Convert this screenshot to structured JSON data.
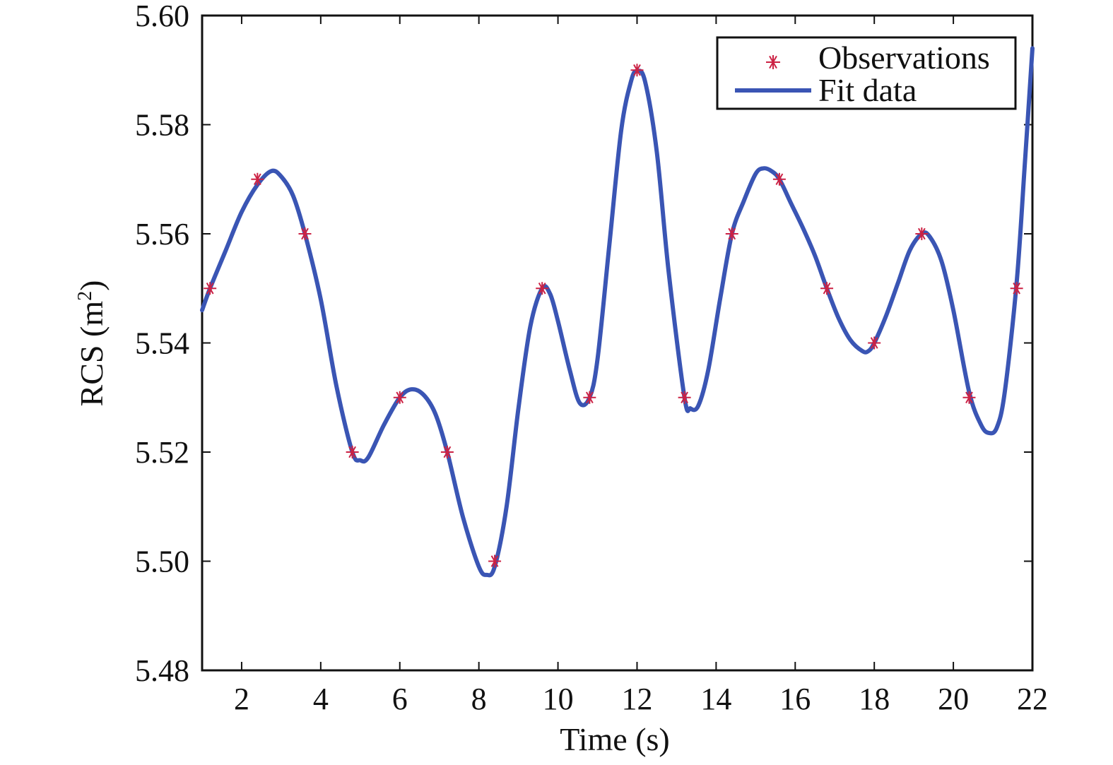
{
  "chart_data": {
    "type": "line",
    "xlabel": "Time (s)",
    "ylabel_main": "RCS (m",
    "ylabel_sup": "2",
    "ylabel_close": ")",
    "xlim": [
      1,
      22
    ],
    "ylim": [
      5.48,
      5.6
    ],
    "xticks": [
      2,
      4,
      6,
      8,
      10,
      12,
      14,
      16,
      18,
      20,
      22
    ],
    "yticks": [
      5.48,
      5.5,
      5.52,
      5.54,
      5.56,
      5.58,
      5.6
    ],
    "ytick_labels": [
      "5.48",
      "5.50",
      "5.52",
      "5.54",
      "5.56",
      "5.58",
      "5.60"
    ],
    "legend": {
      "position": "top-right",
      "entries": [
        "Observations",
        "Fit data"
      ]
    },
    "series": [
      {
        "name": "Observations",
        "style": "markers",
        "marker": "asterisk",
        "color": "#cc2244",
        "x": [
          1.2,
          2.4,
          3.6,
          4.8,
          6.0,
          7.2,
          8.4,
          9.6,
          10.8,
          12.0,
          13.2,
          14.4,
          15.6,
          16.8,
          18.0,
          19.2,
          20.4,
          21.6
        ],
        "y": [
          5.55,
          5.57,
          5.56,
          5.52,
          5.53,
          5.52,
          5.5,
          5.55,
          5.53,
          5.59,
          5.53,
          5.56,
          5.57,
          5.55,
          5.54,
          5.56,
          5.53,
          5.55
        ]
      },
      {
        "name": "Fit data",
        "style": "line",
        "color": "#3a55b4",
        "x": [
          1.0,
          1.2,
          1.6,
          2.0,
          2.4,
          2.75,
          3.0,
          3.3,
          3.6,
          4.0,
          4.4,
          4.8,
          5.0,
          5.2,
          5.6,
          6.0,
          6.3,
          6.6,
          6.9,
          7.2,
          7.6,
          8.0,
          8.2,
          8.4,
          8.7,
          9.0,
          9.3,
          9.6,
          9.8,
          10.0,
          10.3,
          10.55,
          10.8,
          11.0,
          11.3,
          11.6,
          11.85,
          12.0,
          12.2,
          12.5,
          12.8,
          13.2,
          13.35,
          13.55,
          13.8,
          14.1,
          14.4,
          14.7,
          15.0,
          15.2,
          15.4,
          15.6,
          15.9,
          16.2,
          16.5,
          16.8,
          17.1,
          17.4,
          17.7,
          17.85,
          18.0,
          18.3,
          18.6,
          18.9,
          19.2,
          19.4,
          19.7,
          20.0,
          20.4,
          20.7,
          20.9,
          21.1,
          21.3,
          21.6,
          21.8,
          22.0
        ],
        "y": [
          5.546,
          5.55,
          5.557,
          5.564,
          5.569,
          5.5715,
          5.5705,
          5.567,
          5.56,
          5.548,
          5.532,
          5.52,
          5.5185,
          5.519,
          5.525,
          5.53,
          5.5315,
          5.5305,
          5.527,
          5.52,
          5.508,
          5.499,
          5.4975,
          5.499,
          5.51,
          5.528,
          5.543,
          5.55,
          5.549,
          5.544,
          5.535,
          5.529,
          5.53,
          5.537,
          5.558,
          5.579,
          5.588,
          5.5898,
          5.588,
          5.575,
          5.553,
          5.53,
          5.528,
          5.5285,
          5.535,
          5.548,
          5.56,
          5.566,
          5.571,
          5.572,
          5.5715,
          5.57,
          5.5655,
          5.561,
          5.556,
          5.55,
          5.5445,
          5.5405,
          5.5385,
          5.5385,
          5.54,
          5.545,
          5.551,
          5.557,
          5.56,
          5.5595,
          5.555,
          5.546,
          5.531,
          5.525,
          5.5235,
          5.5245,
          5.531,
          5.551,
          5.572,
          5.594
        ]
      }
    ]
  }
}
